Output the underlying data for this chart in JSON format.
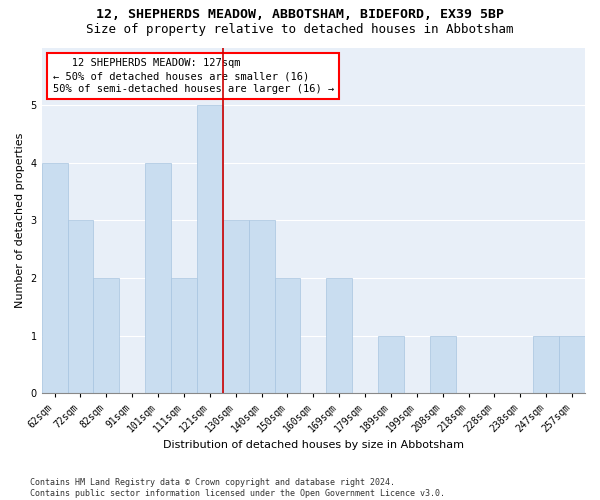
{
  "title1": "12, SHEPHERDS MEADOW, ABBOTSHAM, BIDEFORD, EX39 5BP",
  "title2": "Size of property relative to detached houses in Abbotsham",
  "xlabel": "Distribution of detached houses by size in Abbotsham",
  "ylabel": "Number of detached properties",
  "categories": [
    "62sqm",
    "72sqm",
    "82sqm",
    "91sqm",
    "101sqm",
    "111sqm",
    "121sqm",
    "130sqm",
    "140sqm",
    "150sqm",
    "160sqm",
    "169sqm",
    "179sqm",
    "189sqm",
    "199sqm",
    "208sqm",
    "218sqm",
    "228sqm",
    "238sqm",
    "247sqm",
    "257sqm"
  ],
  "values": [
    4,
    3,
    2,
    0,
    4,
    2,
    5,
    3,
    3,
    2,
    0,
    2,
    0,
    1,
    0,
    1,
    0,
    0,
    0,
    1,
    1
  ],
  "bar_color": "#c9ddf0",
  "bar_edgecolor": "#a8c4e0",
  "vline_color": "#cc0000",
  "vline_x": 6.5,
  "annotation_line1": "   12 SHEPHERDS MEADOW: 127sqm",
  "annotation_line2": "← 50% of detached houses are smaller (16)",
  "annotation_line3": "50% of semi-detached houses are larger (16) →",
  "annotation_box_color": "white",
  "annotation_box_edgecolor": "red",
  "ylim": [
    0,
    6
  ],
  "yticks": [
    0,
    1,
    2,
    3,
    4,
    5
  ],
  "background_color": "#e8eff8",
  "footer": "Contains HM Land Registry data © Crown copyright and database right 2024.\nContains public sector information licensed under the Open Government Licence v3.0.",
  "title1_fontsize": 9.5,
  "title2_fontsize": 9,
  "axis_label_fontsize": 8,
  "tick_fontsize": 7,
  "annotation_fontsize": 7.5,
  "footer_fontsize": 6
}
